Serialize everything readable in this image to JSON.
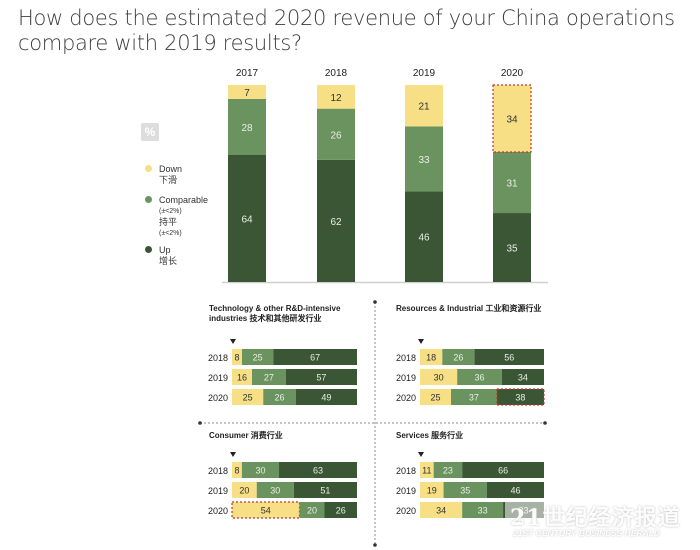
{
  "title": "How does the estimated 2020 revenue of your China operations compare with 2019 results?",
  "unit_label": "%",
  "colors": {
    "down": "#f7df86",
    "comparable": "#6a935f",
    "up": "#3a5634",
    "highlight": "#c0392b"
  },
  "legend": [
    {
      "key": "down",
      "label": "Down",
      "label_cn": "下滑",
      "note": ""
    },
    {
      "key": "comparable",
      "label": "Comparable",
      "note": "(±<2%)",
      "label_cn": "持平",
      "note_cn": "(±<2%)"
    },
    {
      "key": "up",
      "label": "Up",
      "label_cn": "增长",
      "note": ""
    }
  ],
  "watermark": {
    "big": "21世纪经济报道",
    "small": "21ST CENTURY BUSINESS HERALD"
  },
  "chart_data": [
    {
      "type": "bar",
      "stacked": true,
      "title": "How does the estimated 2020 revenue of your China operations compare with 2019 results?",
      "categories": [
        "2017",
        "2018",
        "2019",
        "2020"
      ],
      "series": [
        {
          "name": "Up 增长",
          "values": [
            64,
            62,
            46,
            35
          ]
        },
        {
          "name": "Comparable (±<2%) 持平",
          "values": [
            28,
            26,
            33,
            31
          ]
        },
        {
          "name": "Down 下滑",
          "values": [
            7,
            12,
            21,
            34
          ]
        }
      ],
      "highlight": [
        {
          "category": "2020",
          "series": "Down 下滑"
        }
      ],
      "ylim": [
        0,
        100
      ],
      "legend_position": "left"
    },
    {
      "type": "bar",
      "orientation": "horizontal",
      "stacked": true,
      "title": "Technology & other R&D-intensive industries 技术和其他研发行业",
      "categories": [
        "2018",
        "2019",
        "2020"
      ],
      "series": [
        {
          "name": "Down",
          "values": [
            8,
            16,
            25
          ]
        },
        {
          "name": "Comparable",
          "values": [
            25,
            27,
            26
          ]
        },
        {
          "name": "Up",
          "values": [
            67,
            57,
            49
          ]
        }
      ],
      "highlight": []
    },
    {
      "type": "bar",
      "orientation": "horizontal",
      "stacked": true,
      "title": "Resources & Industrial 工业和资源行业",
      "categories": [
        "2018",
        "2019",
        "2020"
      ],
      "series": [
        {
          "name": "Down",
          "values": [
            18,
            30,
            25
          ]
        },
        {
          "name": "Comparable",
          "values": [
            26,
            36,
            37
          ]
        },
        {
          "name": "Up",
          "values": [
            56,
            34,
            38
          ]
        }
      ],
      "highlight": [
        {
          "category": "2020",
          "series": "Up"
        }
      ]
    },
    {
      "type": "bar",
      "orientation": "horizontal",
      "stacked": true,
      "title": "Consumer 消费行业",
      "categories": [
        "2018",
        "2019",
        "2020"
      ],
      "series": [
        {
          "name": "Down",
          "values": [
            8,
            20,
            54
          ]
        },
        {
          "name": "Comparable",
          "values": [
            30,
            30,
            20
          ]
        },
        {
          "name": "Up",
          "values": [
            63,
            51,
            26
          ]
        }
      ],
      "highlight": [
        {
          "category": "2020",
          "series": "Down"
        }
      ]
    },
    {
      "type": "bar",
      "orientation": "horizontal",
      "stacked": true,
      "title": "Services 服务行业",
      "categories": [
        "2018",
        "2019",
        "2020"
      ],
      "series": [
        {
          "name": "Down",
          "values": [
            11,
            19,
            34
          ]
        },
        {
          "name": "Comparable",
          "values": [
            23,
            35,
            33
          ]
        },
        {
          "name": "Up",
          "values": [
            66,
            46,
            33
          ]
        }
      ],
      "highlight": []
    }
  ]
}
